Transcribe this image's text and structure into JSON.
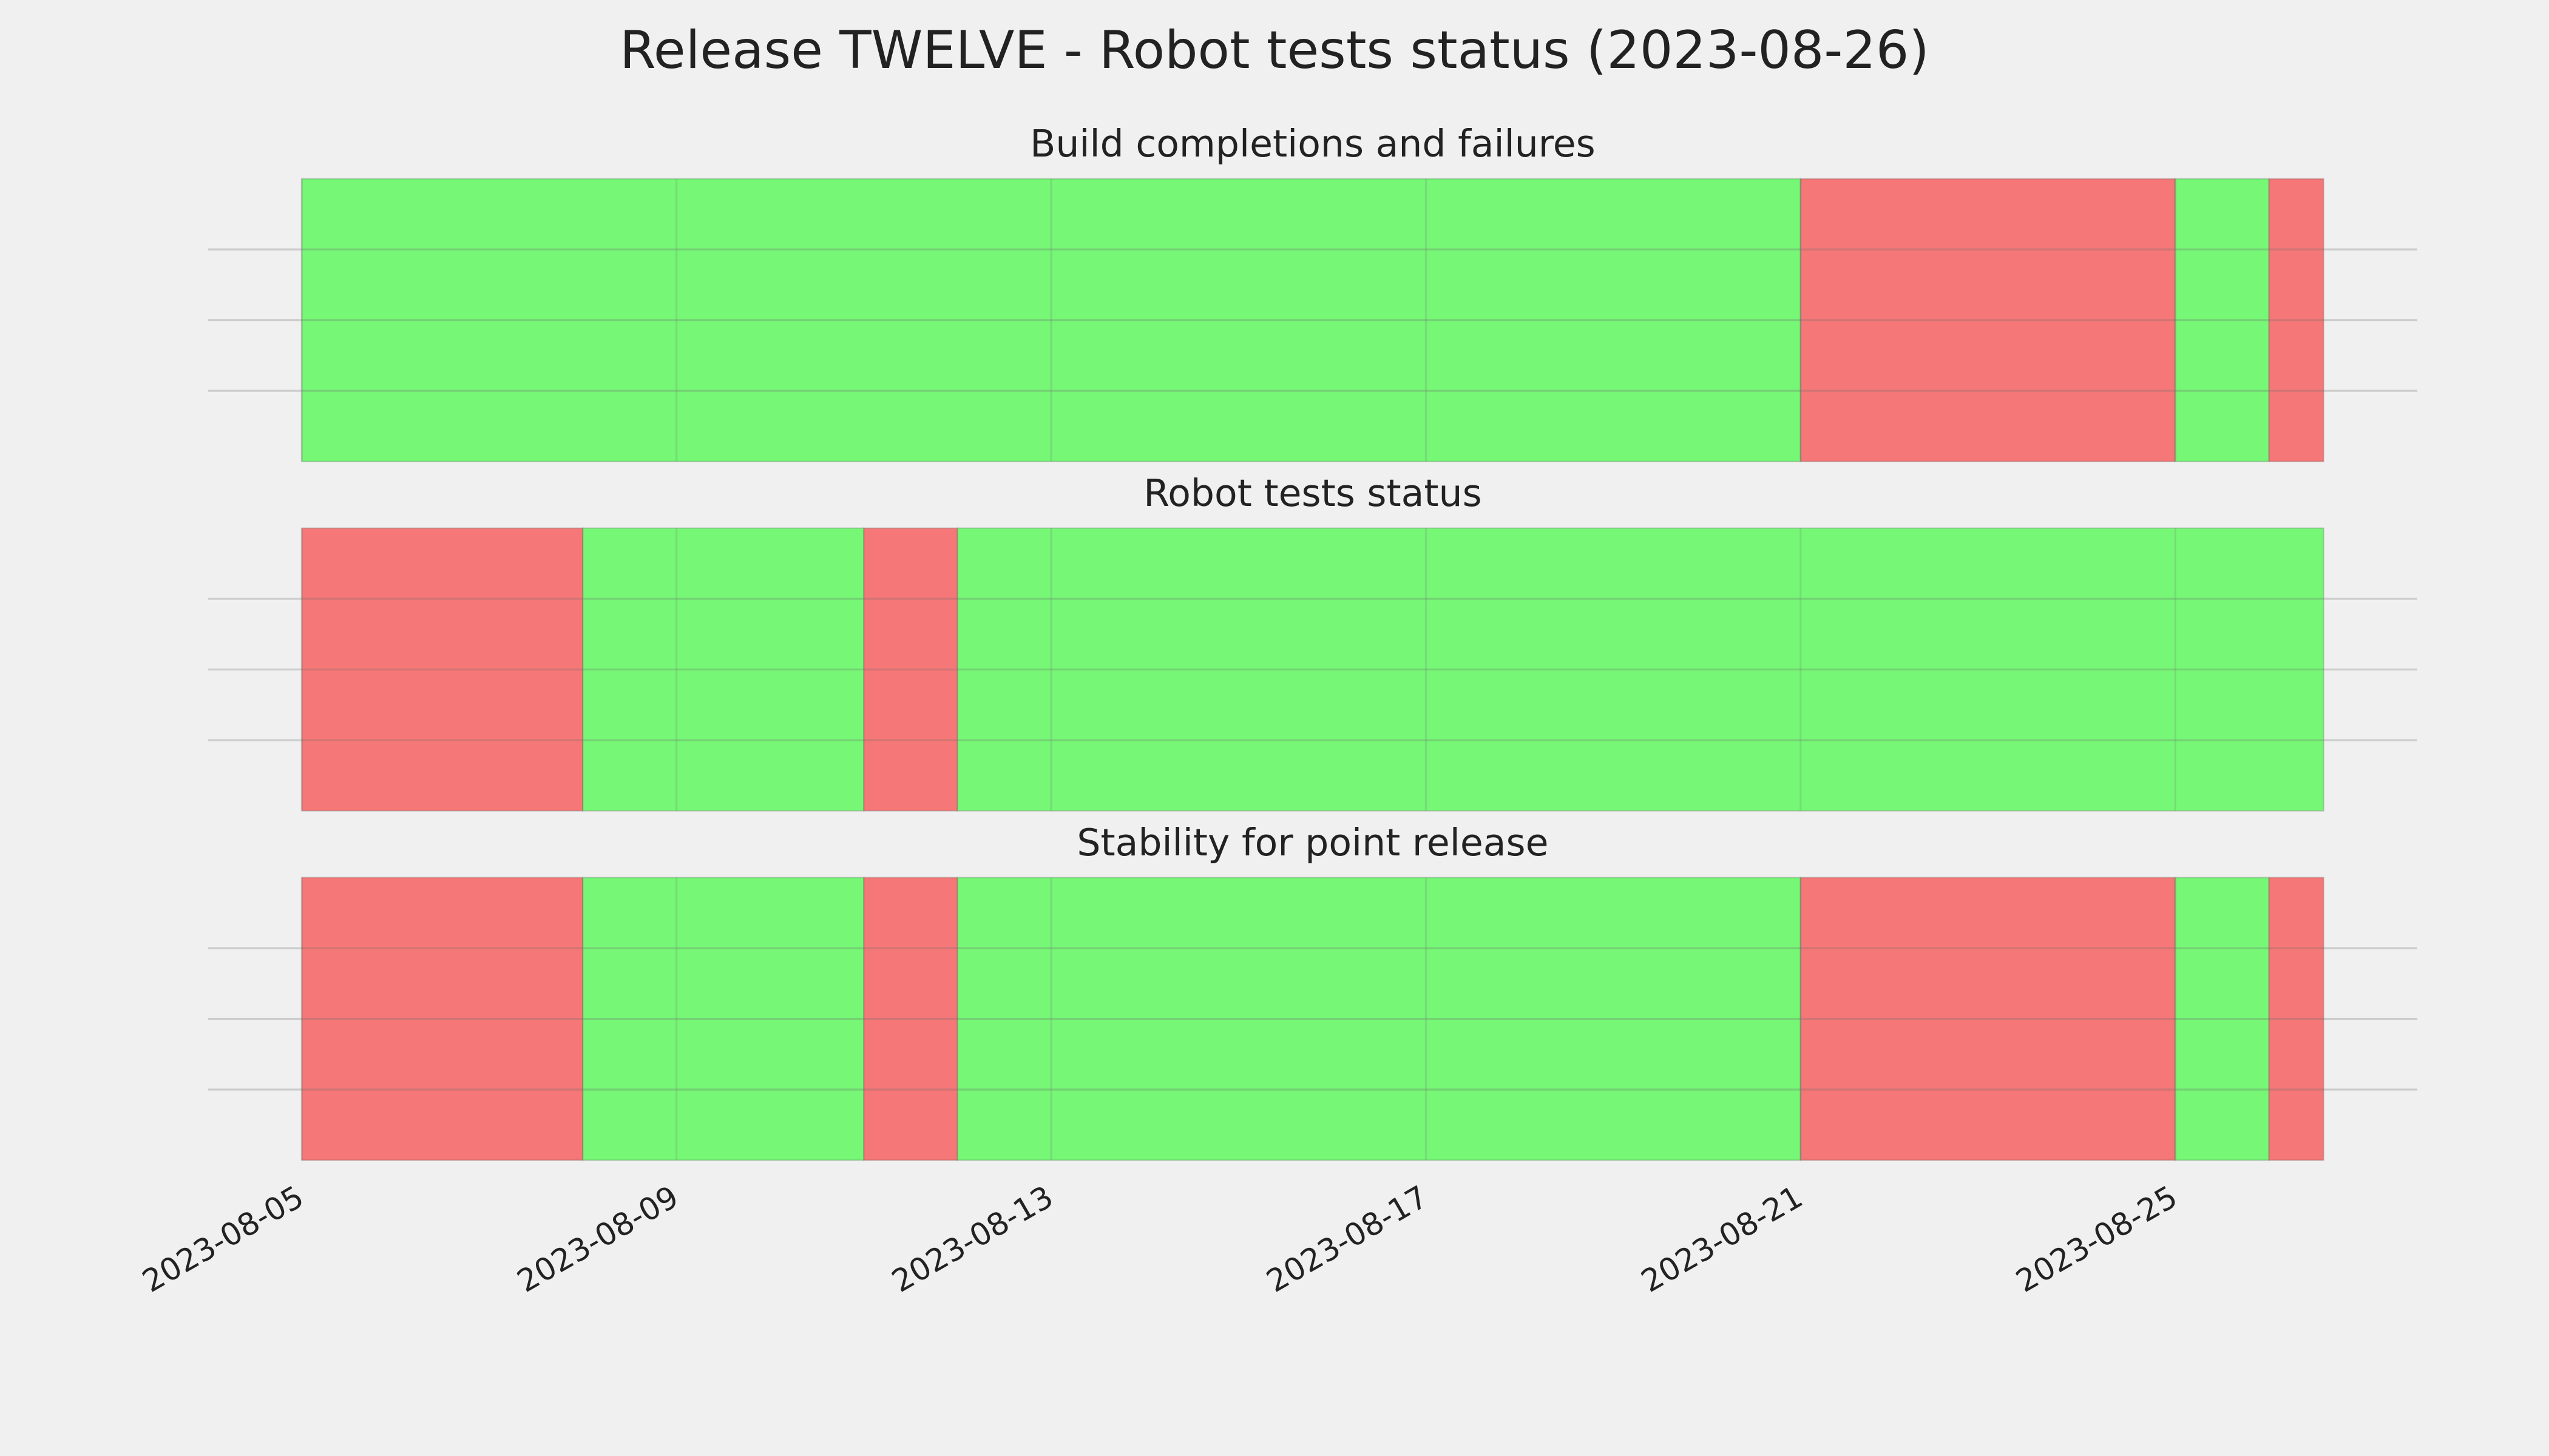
{
  "title": "Release TWELVE - Robot tests status (2023-08-26)",
  "xlim": [
    "2023-08-04T00:00",
    "2023-08-27T14:00"
  ],
  "xticks": [
    "2023-08-05",
    "2023-08-09",
    "2023-08-13",
    "2023-08-17",
    "2023-08-21",
    "2023-08-25"
  ],
  "grid": true,
  "chart_data": [
    {
      "type": "timeline",
      "title": "Build completions and failures",
      "ylim": [
        0,
        4
      ],
      "ygrid": [
        1,
        2,
        3
      ],
      "colors": {
        "pass": "#76f776",
        "fail": "#f67777"
      },
      "spans": [
        {
          "start": "2023-08-05T00:00",
          "end": "2023-08-21T00:00",
          "status": "pass"
        },
        {
          "start": "2023-08-21T00:00",
          "end": "2023-08-25T00:00",
          "status": "fail"
        },
        {
          "start": "2023-08-25T00:00",
          "end": "2023-08-26T00:00",
          "status": "pass"
        },
        {
          "start": "2023-08-26T00:00",
          "end": "2023-08-26T14:00",
          "status": "fail"
        }
      ]
    },
    {
      "type": "timeline",
      "title": "Robot tests status",
      "ylim": [
        0,
        4
      ],
      "ygrid": [
        1,
        2,
        3
      ],
      "colors": {
        "pass": "#76f776",
        "fail": "#f67777"
      },
      "spans": [
        {
          "start": "2023-08-05T00:00",
          "end": "2023-08-08T00:00",
          "status": "fail"
        },
        {
          "start": "2023-08-08T00:00",
          "end": "2023-08-11T00:00",
          "status": "pass"
        },
        {
          "start": "2023-08-11T00:00",
          "end": "2023-08-12T00:00",
          "status": "fail"
        },
        {
          "start": "2023-08-12T00:00",
          "end": "2023-08-26T14:00",
          "status": "pass"
        }
      ]
    },
    {
      "type": "timeline",
      "title": "Stability for point release",
      "ylim": [
        0,
        4
      ],
      "ygrid": [
        1,
        2,
        3
      ],
      "colors": {
        "pass": "#76f776",
        "fail": "#f67777"
      },
      "spans": [
        {
          "start": "2023-08-05T00:00",
          "end": "2023-08-08T00:00",
          "status": "fail"
        },
        {
          "start": "2023-08-08T00:00",
          "end": "2023-08-11T00:00",
          "status": "pass"
        },
        {
          "start": "2023-08-11T00:00",
          "end": "2023-08-12T00:00",
          "status": "fail"
        },
        {
          "start": "2023-08-12T00:00",
          "end": "2023-08-21T00:00",
          "status": "pass"
        },
        {
          "start": "2023-08-21T00:00",
          "end": "2023-08-25T00:00",
          "status": "fail"
        },
        {
          "start": "2023-08-25T00:00",
          "end": "2023-08-26T00:00",
          "status": "pass"
        },
        {
          "start": "2023-08-26T00:00",
          "end": "2023-08-26T14:00",
          "status": "fail"
        }
      ]
    }
  ]
}
